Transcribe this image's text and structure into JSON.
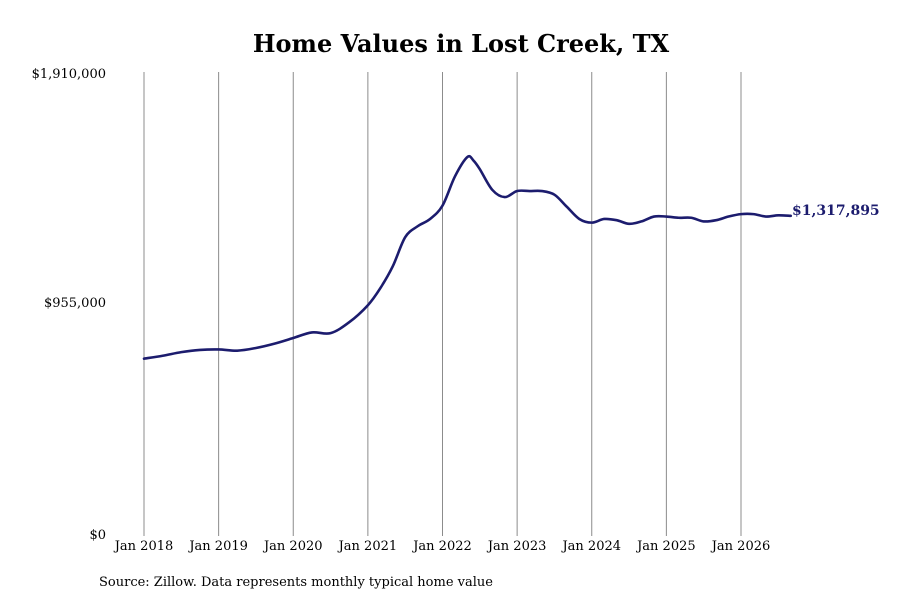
{
  "chart_data": {
    "type": "line",
    "title": "Home Values in Lost Creek, TX",
    "source": "Source: Zillow. Data represents monthly typical home value",
    "y_ticks": [
      "$1,910,000",
      "$955,000",
      "$0"
    ],
    "y_tick_values": [
      1910000,
      955000,
      0
    ],
    "ylim": [
      0,
      1910000
    ],
    "x_ticks": [
      "Jan 2018",
      "Jan 2019",
      "Jan 2020",
      "Jan 2021",
      "Jan 2022",
      "Jan 2023",
      "Jan 2024",
      "Jan 2025",
      "Jan 2026"
    ],
    "grid": "vertical",
    "line_color": "#1c1c6e",
    "end_label": "$1,317,895",
    "series": [
      {
        "x": [
          "2018-01",
          "2018-04",
          "2018-07",
          "2018-10",
          "2019-01",
          "2019-04",
          "2019-07",
          "2019-10",
          "2020-01",
          "2020-04",
          "2020-07",
          "2020-10",
          "2021-01",
          "2021-03",
          "2021-05",
          "2021-07",
          "2021-09",
          "2021-11",
          "2022-01",
          "2022-03",
          "2022-05",
          "2022-06",
          "2022-07",
          "2022-09",
          "2022-11",
          "2023-01",
          "2023-03",
          "2023-05",
          "2023-07",
          "2023-09",
          "2023-11",
          "2024-01",
          "2024-03",
          "2024-05",
          "2024-07",
          "2024-09",
          "2024-11",
          "2025-01",
          "2025-03",
          "2025-05",
          "2025-07",
          "2025-09",
          "2025-11",
          "2026-01",
          "2026-03",
          "2026-05",
          "2026-07",
          "2026-09"
        ],
        "values": [
          730000,
          742000,
          757000,
          766000,
          768000,
          763000,
          774000,
          792000,
          815000,
          838000,
          835000,
          880000,
          950000,
          1020000,
          1110000,
          1230000,
          1275000,
          1305000,
          1360000,
          1480000,
          1560000,
          1545000,
          1510000,
          1425000,
          1395000,
          1420000,
          1420000,
          1420000,
          1405000,
          1355000,
          1305000,
          1290000,
          1305000,
          1300000,
          1285000,
          1295000,
          1315000,
          1315000,
          1310000,
          1310000,
          1295000,
          1300000,
          1315000,
          1325000,
          1325000,
          1315000,
          1320000,
          1317895
        ]
      }
    ]
  }
}
